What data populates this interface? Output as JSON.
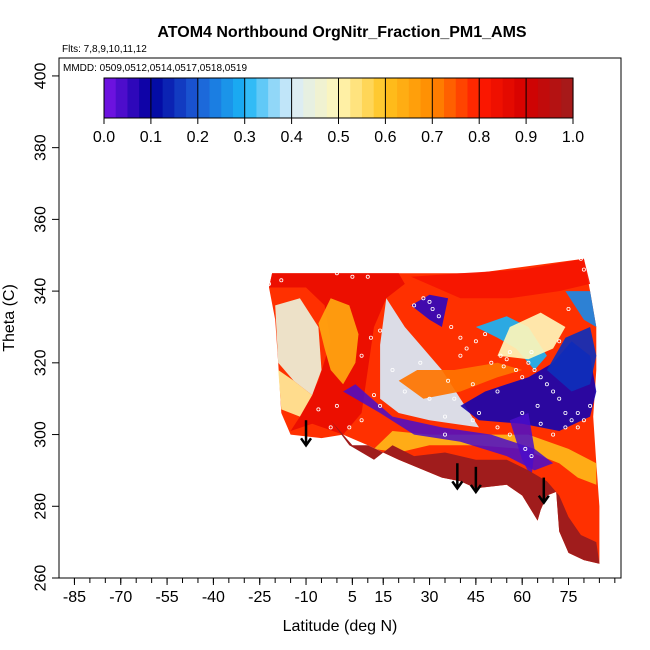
{
  "chart_data": {
    "type": "heatmap",
    "title": "ATOM4 Northbound OrgNitr_Fraction_PM1_AMS",
    "subtitle_flights": "Flts: 7,8,9,10,11,12",
    "subtitle_dates": "MMDD: 0509,0512,0514,0517,0518,0519",
    "xlabel": "Latitude (deg N)",
    "ylabel": "Theta (C)",
    "xlim": [
      -90,
      92
    ],
    "ylim": [
      260,
      405
    ],
    "x_ticks": [
      -85,
      -70,
      -55,
      -40,
      -25,
      -10,
      5,
      15,
      30,
      45,
      60,
      75
    ],
    "x_tick_labels": [
      "-85",
      "-70",
      "-55",
      "-40",
      "-25",
      "-10",
      "5",
      "15",
      "30",
      "45",
      "60",
      "75"
    ],
    "x_minor_step": 5,
    "y_ticks": [
      260,
      280,
      300,
      320,
      340,
      360,
      380,
      400
    ],
    "y_tick_labels": [
      "260",
      "280",
      "300",
      "320",
      "340",
      "360",
      "380",
      "400"
    ],
    "colorbar": {
      "ticks": [
        0.0,
        0.1,
        0.2,
        0.3,
        0.4,
        0.5,
        0.6,
        0.7,
        0.8,
        0.9,
        1.0
      ],
      "tick_labels": [
        "0.0",
        "0.1",
        "0.2",
        "0.3",
        "0.4",
        "0.5",
        "0.6",
        "0.7",
        "0.8",
        "0.9",
        "1.0"
      ],
      "colors": [
        "#7b15e8",
        "#00009e",
        "#1c5ed6",
        "#1ab4f5",
        "#d8ecfa",
        "#fff6b8",
        "#ffc21e",
        "#ff8a00",
        "#ff1a00",
        "#d40000",
        "#a01c1c"
      ]
    },
    "field_boundary": [
      [
        -22,
        341
      ],
      [
        -21,
        345
      ],
      [
        45,
        345
      ],
      [
        80,
        349
      ],
      [
        82,
        340
      ],
      [
        84,
        330
      ],
      [
        84,
        318
      ],
      [
        83,
        305
      ],
      [
        84,
        292
      ],
      [
        85,
        280
      ],
      [
        85,
        264
      ],
      [
        80,
        265
      ],
      [
        75,
        267
      ],
      [
        72,
        273
      ],
      [
        71,
        284
      ],
      [
        68,
        283
      ],
      [
        66,
        279
      ],
      [
        65,
        276
      ],
      [
        60,
        283
      ],
      [
        55,
        286
      ],
      [
        45,
        285
      ],
      [
        40,
        287
      ],
      [
        34,
        288
      ],
      [
        20,
        293
      ],
      [
        10,
        297
      ],
      [
        2,
        300
      ],
      [
        -5,
        299
      ],
      [
        -15,
        300
      ],
      [
        -18,
        306
      ],
      [
        -19,
        320
      ],
      [
        -20,
        332
      ]
    ],
    "darkred_region": [
      [
        -2,
        304
      ],
      [
        4,
        297
      ],
      [
        12,
        293
      ],
      [
        18,
        297
      ],
      [
        25,
        294
      ],
      [
        35,
        295
      ],
      [
        45,
        293
      ],
      [
        55,
        293
      ],
      [
        62,
        290
      ],
      [
        68,
        287
      ],
      [
        72,
        283
      ],
      [
        75,
        277
      ],
      [
        79,
        272
      ],
      [
        84,
        270
      ],
      [
        85,
        264
      ],
      [
        80,
        265
      ],
      [
        75,
        267
      ],
      [
        72,
        273
      ],
      [
        71,
        284
      ],
      [
        68,
        283
      ],
      [
        66,
        279
      ],
      [
        65,
        276
      ],
      [
        60,
        283
      ],
      [
        55,
        286
      ],
      [
        45,
        285
      ],
      [
        40,
        287
      ],
      [
        34,
        288
      ],
      [
        20,
        293
      ],
      [
        10,
        297
      ],
      [
        5,
        297
      ]
    ],
    "field_regions": [
      {
        "value": 0.85,
        "points": [
          [
            -15,
            301
          ],
          [
            -8,
            303
          ],
          [
            2,
            300
          ],
          [
            8,
            306
          ],
          [
            10,
            318
          ],
          [
            12,
            330
          ],
          [
            16,
            338
          ],
          [
            22,
            342
          ],
          [
            20,
            345
          ],
          [
            -21,
            345
          ],
          [
            -22,
            341
          ],
          [
            -10,
            341
          ],
          [
            -4,
            336
          ],
          [
            -2,
            326
          ],
          [
            -6,
            315
          ],
          [
            -12,
            305
          ]
        ]
      },
      {
        "value": 0.45,
        "points": [
          [
            -19,
            320
          ],
          [
            -14,
            315
          ],
          [
            -8,
            311
          ],
          [
            -5,
            318
          ],
          [
            -6,
            330
          ],
          [
            -12,
            338
          ],
          [
            -20,
            336
          ]
        ]
      },
      {
        "value": 0.52,
        "points": [
          [
            -18,
            307
          ],
          [
            -12,
            305
          ],
          [
            -8,
            311
          ],
          [
            -14,
            315
          ],
          [
            -19,
            318
          ]
        ]
      },
      {
        "value": 0.65,
        "points": [
          [
            -6,
            331
          ],
          [
            -4,
            324
          ],
          [
            -2,
            318
          ],
          [
            2,
            314
          ],
          [
            6,
            320
          ],
          [
            7,
            328
          ],
          [
            4,
            336
          ],
          [
            -2,
            338
          ]
        ]
      },
      {
        "value": 0.62,
        "points": [
          [
            12,
            296
          ],
          [
            20,
            295
          ],
          [
            30,
            297
          ],
          [
            45,
            297
          ],
          [
            60,
            296
          ],
          [
            72,
            292
          ],
          [
            78,
            288
          ],
          [
            84,
            286
          ],
          [
            84,
            292
          ],
          [
            75,
            296
          ],
          [
            62,
            300
          ],
          [
            48,
            300
          ],
          [
            30,
            300
          ],
          [
            18,
            301
          ]
        ]
      },
      {
        "value": 0.4,
        "points": [
          [
            16,
            338
          ],
          [
            22,
            330
          ],
          [
            28,
            324
          ],
          [
            34,
            318
          ],
          [
            40,
            310
          ],
          [
            46,
            302
          ],
          [
            30,
            304
          ],
          [
            20,
            306
          ],
          [
            14,
            310
          ],
          [
            14,
            325
          ]
        ]
      },
      {
        "value": 0.06,
        "points": [
          [
            24,
            336
          ],
          [
            30,
            332
          ],
          [
            34,
            330
          ],
          [
            36,
            338
          ],
          [
            30,
            339
          ]
        ]
      },
      {
        "value": 0.08,
        "points": [
          [
            40,
            308
          ],
          [
            46,
            304
          ],
          [
            60,
            303
          ],
          [
            72,
            301
          ],
          [
            82,
            305
          ],
          [
            84,
            312
          ],
          [
            82,
            322
          ],
          [
            76,
            326
          ],
          [
            70,
            320
          ],
          [
            62,
            316
          ],
          [
            55,
            314
          ],
          [
            48,
            312
          ]
        ]
      },
      {
        "value": 0.3,
        "points": [
          [
            45,
            330
          ],
          [
            52,
            327
          ],
          [
            58,
            324
          ],
          [
            64,
            318
          ],
          [
            68,
            322
          ],
          [
            62,
            330
          ],
          [
            55,
            333
          ]
        ]
      },
      {
        "value": 0.15,
        "points": [
          [
            68,
            318
          ],
          [
            76,
            312
          ],
          [
            82,
            314
          ],
          [
            84,
            322
          ],
          [
            82,
            330
          ],
          [
            74,
            327
          ]
        ]
      },
      {
        "value": 0.25,
        "points": [
          [
            74,
            340
          ],
          [
            80,
            332
          ],
          [
            84,
            330
          ],
          [
            82,
            340
          ]
        ]
      },
      {
        "value": 0.72,
        "points": [
          [
            20,
            315
          ],
          [
            28,
            310
          ],
          [
            40,
            312
          ],
          [
            52,
            316
          ],
          [
            60,
            318
          ],
          [
            52,
            320
          ],
          [
            38,
            318
          ],
          [
            26,
            318
          ]
        ]
      },
      {
        "value": 0.5,
        "points": [
          [
            52,
            322
          ],
          [
            62,
            321
          ],
          [
            70,
            324
          ],
          [
            74,
            330
          ],
          [
            66,
            334
          ],
          [
            56,
            330
          ]
        ]
      },
      {
        "value": 0.82,
        "points": [
          [
            24,
            344
          ],
          [
            40,
            345
          ],
          [
            60,
            346
          ],
          [
            80,
            349
          ],
          [
            82,
            342
          ],
          [
            72,
            340
          ],
          [
            56,
            338
          ],
          [
            40,
            338
          ]
        ]
      }
    ],
    "dark_streaks": [
      {
        "points": [
          [
            2,
            312
          ],
          [
            14,
            306
          ],
          [
            25,
            300
          ],
          [
            40,
            298
          ],
          [
            55,
            294
          ],
          [
            64,
            290
          ],
          [
            70,
            292
          ],
          [
            64,
            296
          ],
          [
            50,
            300
          ],
          [
            34,
            302
          ],
          [
            18,
            305
          ],
          [
            6,
            314
          ]
        ]
      },
      {
        "points": [
          [
            56,
            304
          ],
          [
            60,
            293
          ],
          [
            63,
            288
          ],
          [
            64,
            296
          ],
          [
            62,
            306
          ]
        ]
      }
    ],
    "sample_points": [
      [
        -22,
        342
      ],
      [
        -18,
        343
      ],
      [
        -12,
        346
      ],
      [
        0,
        345
      ],
      [
        5,
        344
      ],
      [
        10,
        344
      ],
      [
        25,
        336
      ],
      [
        28,
        338
      ],
      [
        30,
        337
      ],
      [
        31,
        335
      ],
      [
        33,
        333
      ],
      [
        37,
        330
      ],
      [
        40,
        322
      ],
      [
        40,
        327
      ],
      [
        42,
        324
      ],
      [
        45,
        326
      ],
      [
        48,
        328
      ],
      [
        50,
        320
      ],
      [
        53,
        322
      ],
      [
        54,
        319
      ],
      [
        55,
        321
      ],
      [
        56,
        323
      ],
      [
        58,
        318
      ],
      [
        60,
        316
      ],
      [
        62,
        320
      ],
      [
        63,
        323
      ],
      [
        64,
        318
      ],
      [
        66,
        316
      ],
      [
        68,
        314
      ],
      [
        70,
        312
      ],
      [
        72,
        310
      ],
      [
        74,
        306
      ],
      [
        76,
        304
      ],
      [
        78,
        302
      ],
      [
        80,
        304
      ],
      [
        82,
        308
      ],
      [
        63,
        294
      ],
      [
        61,
        296
      ],
      [
        56,
        300
      ],
      [
        52,
        302
      ],
      [
        46,
        306
      ],
      [
        44,
        304
      ],
      [
        38,
        310
      ],
      [
        35,
        305
      ],
      [
        30,
        310
      ],
      [
        22,
        312
      ],
      [
        14,
        308
      ],
      [
        12,
        311
      ],
      [
        8,
        304
      ],
      [
        4,
        302
      ],
      [
        -2,
        302
      ],
      [
        -6,
        307
      ],
      [
        0,
        308
      ],
      [
        8,
        322
      ],
      [
        11,
        327
      ],
      [
        14,
        329
      ],
      [
        27,
        320
      ],
      [
        36,
        315
      ],
      [
        44,
        314
      ],
      [
        66,
        303
      ],
      [
        70,
        300
      ],
      [
        74,
        302
      ],
      [
        78,
        306
      ],
      [
        80,
        346
      ],
      [
        79,
        349
      ],
      [
        75,
        335
      ],
      [
        72,
        326
      ],
      [
        65,
        308
      ],
      [
        60,
        306
      ],
      [
        52,
        312
      ],
      [
        35,
        300
      ],
      [
        18,
        318
      ]
    ],
    "arrows": [
      {
        "x": -10,
        "y_from": 304,
        "y_to": 297
      },
      {
        "x": 39,
        "y_from": 292,
        "y_to": 285
      },
      {
        "x": 45,
        "y_from": 291,
        "y_to": 284
      },
      {
        "x": 67,
        "y_from": 288,
        "y_to": 281
      }
    ]
  }
}
